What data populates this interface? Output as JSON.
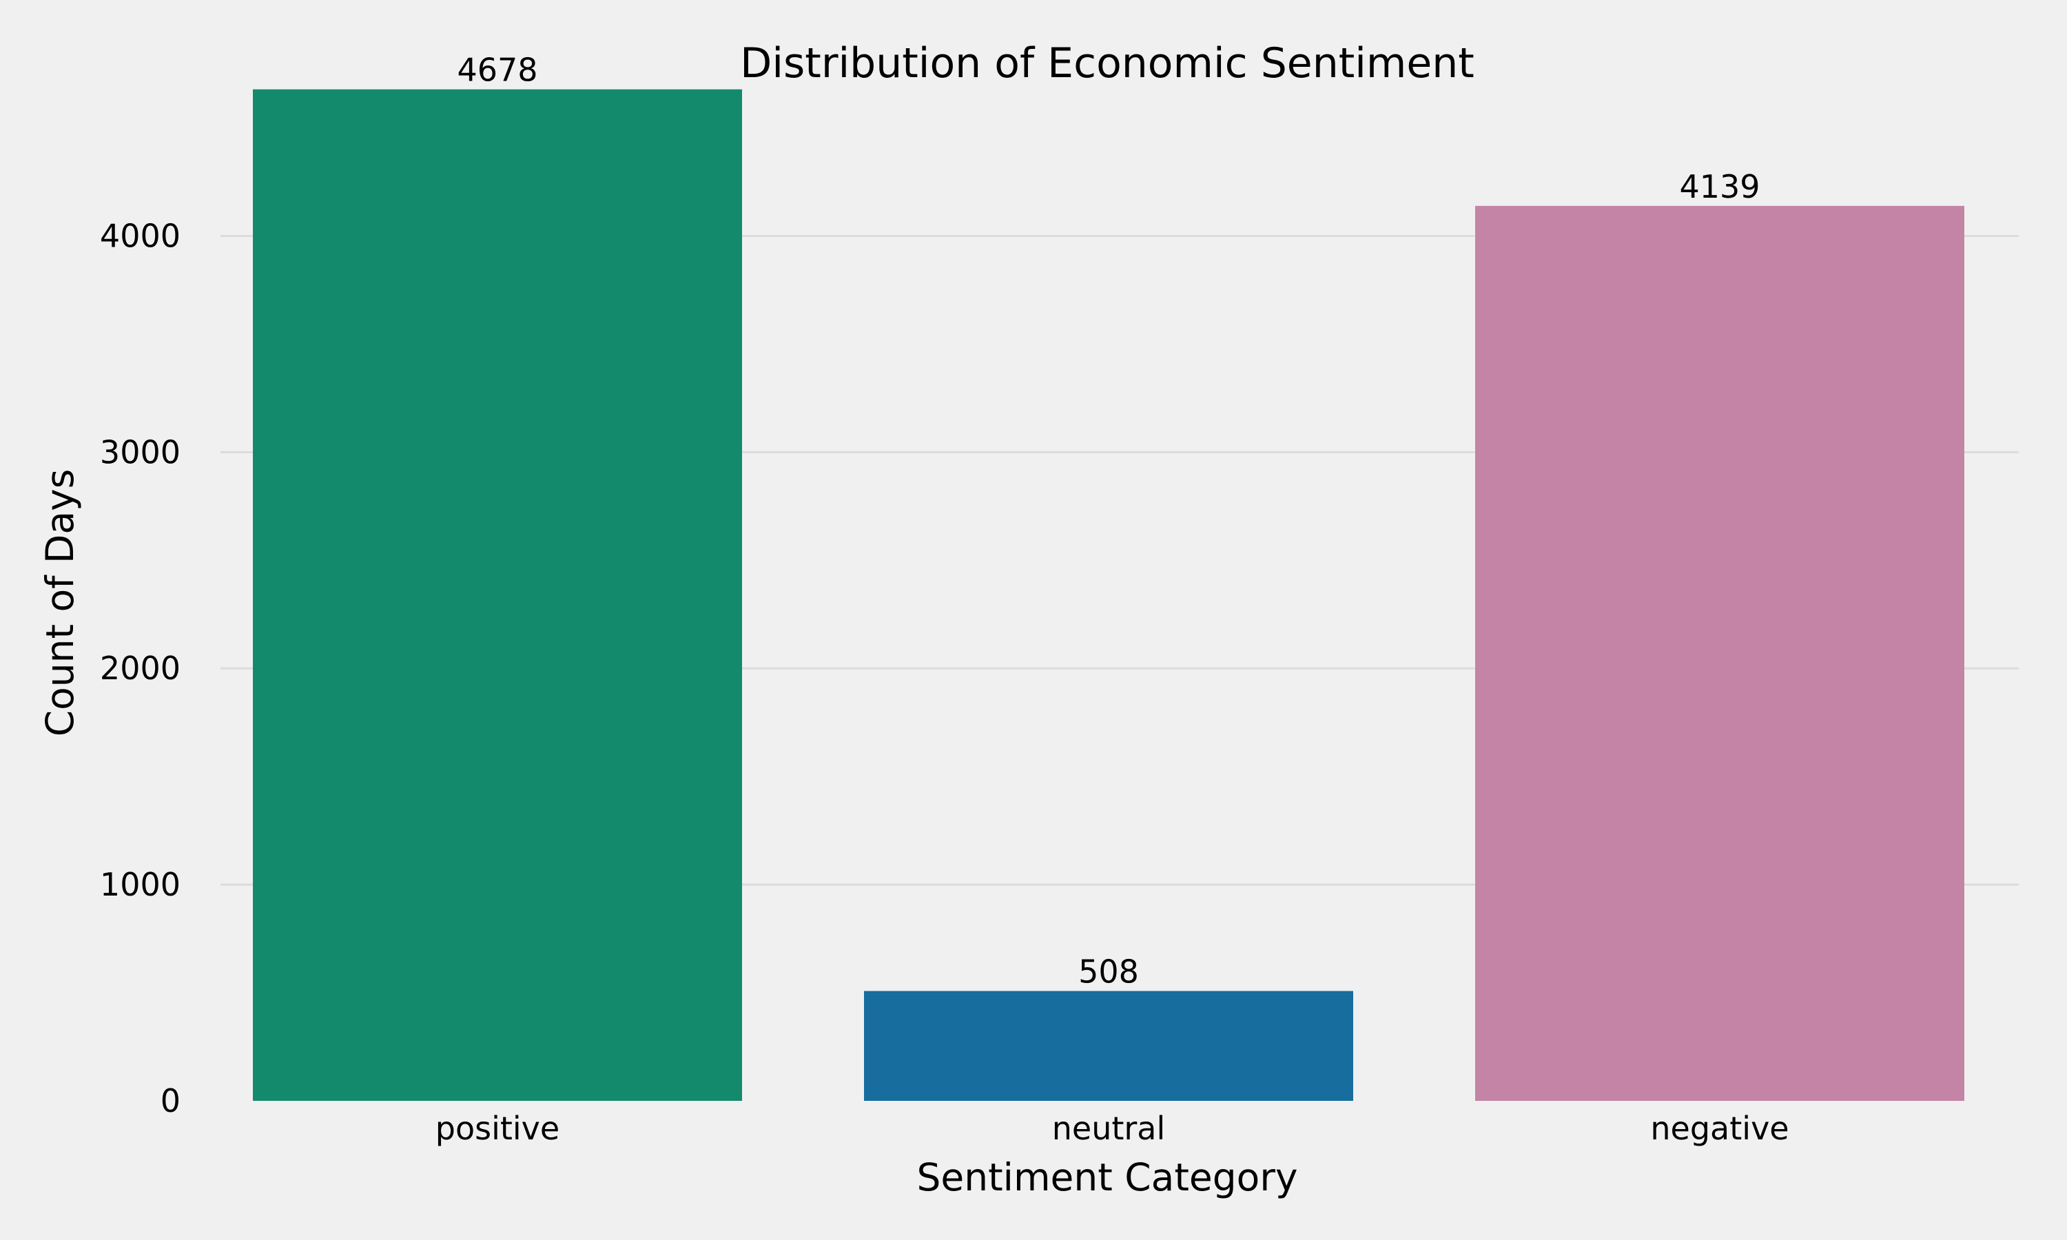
{
  "chart_data": {
    "type": "bar",
    "title": "Distribution of Economic Sentiment",
    "xlabel": "Sentiment Category",
    "ylabel": "Count of Days",
    "categories": [
      "positive",
      "neutral",
      "negative"
    ],
    "values": [
      4678,
      508,
      4139
    ],
    "data_labels": [
      "4678",
      "508",
      "4139"
    ],
    "colors": [
      "#148a6c",
      "#176d9e",
      "#c484a6"
    ],
    "ylim": [
      0,
      4900
    ],
    "yticks": [
      0,
      1000,
      2000,
      3000,
      4000
    ],
    "ytick_labels": [
      "0",
      "1000",
      "2000",
      "3000",
      "4000"
    ],
    "grid": "horizontal",
    "legend": "none"
  }
}
